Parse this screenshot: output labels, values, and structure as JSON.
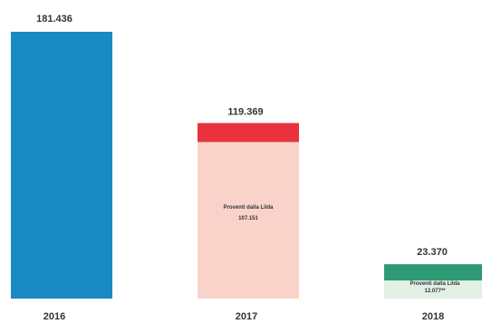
{
  "chart_data": {
    "type": "bar",
    "categories": [
      "2016",
      "2017",
      "2018"
    ],
    "values": [
      181.436,
      119.369,
      23.37
    ],
    "value_labels": [
      "181.436",
      "119.369",
      "23.370"
    ],
    "segments": [
      null,
      {
        "label": "Proventi dalla Lilda",
        "value": 107.151,
        "value_label": "107.151"
      },
      {
        "label": "Proventi dalla Lilda",
        "value": 12.077,
        "value_label": "12.077**"
      }
    ],
    "colors": {
      "bar_2016": "#1a8ac2",
      "bar_2017_top": "#e8333f",
      "bar_2017_segment": "#f9d3c9",
      "bar_2018_top": "#2f9a76",
      "bar_2018_segment": "#e2f0e6"
    },
    "ylim": [
      0,
      181.436
    ],
    "grid": false,
    "legend": "none"
  }
}
